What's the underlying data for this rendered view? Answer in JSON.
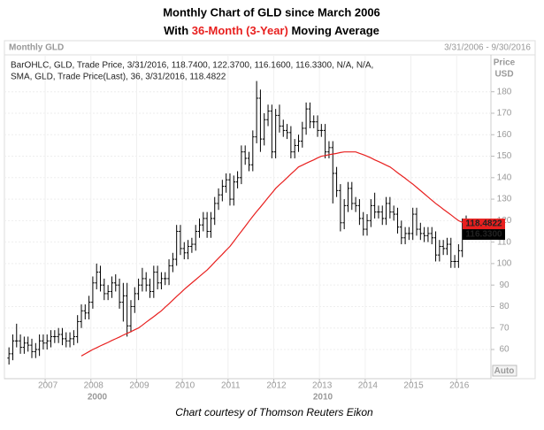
{
  "chart_data": {
    "type": "ohlc",
    "title": "Monthly Chart of GLD since March 2006",
    "subtitle": [
      "With ",
      "36-Month (3-Year)",
      " Moving Average"
    ],
    "subtitle_colors": [
      "#000000",
      "#e8201f",
      "#000000"
    ],
    "panel_label": "Monthly GLD",
    "range_label": "3/31/2006 - 9/30/2016",
    "ylabel": [
      "Price",
      "USD"
    ],
    "button": "Auto",
    "footer": "Chart courtesy of Thomson Reuters Eikon",
    "decade_labels": [
      "2000",
      "2010"
    ],
    "x": [
      "2006-03",
      "2006-04",
      "2006-05",
      "2006-06",
      "2006-07",
      "2006-08",
      "2006-09",
      "2006-10",
      "2006-11",
      "2006-12",
      "2007-01",
      "2007-02",
      "2007-03",
      "2007-04",
      "2007-05",
      "2007-06",
      "2007-07",
      "2007-08",
      "2007-09",
      "2007-10",
      "2007-11",
      "2007-12",
      "2008-01",
      "2008-02",
      "2008-03",
      "2008-04",
      "2008-05",
      "2008-06",
      "2008-07",
      "2008-08",
      "2008-09",
      "2008-10",
      "2008-11",
      "2008-12",
      "2009-01",
      "2009-02",
      "2009-03",
      "2009-04",
      "2009-05",
      "2009-06",
      "2009-07",
      "2009-08",
      "2009-09",
      "2009-10",
      "2009-11",
      "2009-12",
      "2010-01",
      "2010-02",
      "2010-03",
      "2010-04",
      "2010-05",
      "2010-06",
      "2010-07",
      "2010-08",
      "2010-09",
      "2010-10",
      "2010-11",
      "2010-12",
      "2011-01",
      "2011-02",
      "2011-03",
      "2011-04",
      "2011-05",
      "2011-06",
      "2011-07",
      "2011-08",
      "2011-09",
      "2011-10",
      "2011-11",
      "2011-12",
      "2012-01",
      "2012-02",
      "2012-03",
      "2012-04",
      "2012-05",
      "2012-06",
      "2012-07",
      "2012-08",
      "2012-09",
      "2012-10",
      "2012-11",
      "2012-12",
      "2013-01",
      "2013-02",
      "2013-03",
      "2013-04",
      "2013-05",
      "2013-06",
      "2013-07",
      "2013-08",
      "2013-09",
      "2013-10",
      "2013-11",
      "2013-12",
      "2014-01",
      "2014-02",
      "2014-03",
      "2014-04",
      "2014-05",
      "2014-06",
      "2014-07",
      "2014-08",
      "2014-09",
      "2014-10",
      "2014-11",
      "2014-12",
      "2015-01",
      "2015-02",
      "2015-03",
      "2015-04",
      "2015-05",
      "2015-06",
      "2015-07",
      "2015-08",
      "2015-09",
      "2015-10",
      "2015-11",
      "2015-12",
      "2016-01",
      "2016-02",
      "2016-03"
    ],
    "xlim": [
      "2006-03",
      "2016-09"
    ],
    "xticks": [
      2007,
      2008,
      2009,
      2010,
      2011,
      2012,
      2013,
      2014,
      2015,
      2016
    ],
    "ylim": [
      53,
      191
    ],
    "yticks": [
      60,
      70,
      80,
      90,
      100,
      110,
      120,
      130,
      140,
      150,
      160,
      170,
      180
    ],
    "grid": true,
    "series": [
      {
        "name": "BarOHLC, GLD, Trade Price, 3/31/2016, 118.7400, 122.3700, 116.1600, 116.3300, N/A, N/A,",
        "type": "ohlc",
        "color": "#000000",
        "label_bg": "#000000",
        "open": [
          56,
          58,
          64,
          64,
          61,
          63,
          62,
          59,
          60,
          64,
          63,
          64,
          66,
          66,
          67,
          65,
          64,
          65,
          66,
          73,
          78,
          77,
          82,
          91,
          96,
          90,
          86,
          87,
          91,
          90,
          82,
          85,
          71,
          80,
          86,
          90,
          93,
          90,
          87,
          96,
          91,
          93,
          93,
          99,
          102,
          115,
          107,
          105,
          108,
          109,
          115,
          118,
          121,
          115,
          121,
          128,
          132,
          136,
          139,
          130,
          138,
          140,
          152,
          149,
          146,
          159,
          177,
          158,
          167,
          171,
          152,
          169,
          164,
          162,
          161,
          152,
          155,
          157,
          163,
          172,
          166,
          166,
          162,
          162,
          152,
          154,
          142,
          134,
          119,
          127,
          135,
          128,
          127,
          121,
          116,
          120,
          127,
          124,
          124,
          121,
          128,
          124,
          123,
          117,
          112,
          114,
          114,
          123,
          116,
          114,
          113,
          114,
          112,
          104,
          108,
          107,
          109,
          101,
          101,
          106,
          118.74
        ],
        "high": [
          61,
          67,
          72,
          67,
          66,
          66,
          65,
          63,
          67,
          67,
          67,
          69,
          69,
          70,
          70,
          68,
          68,
          69,
          76,
          81,
          81,
          85,
          94,
          100,
          99,
          93,
          90,
          94,
          95,
          93,
          91,
          91,
          83,
          89,
          93,
          98,
          96,
          93,
          99,
          99,
          96,
          96,
          102,
          105,
          118,
          118,
          110,
          111,
          112,
          118,
          121,
          124,
          124,
          124,
          131,
          135,
          139,
          142,
          142,
          141,
          143,
          155,
          155,
          152,
          162,
          185,
          181,
          170,
          174,
          174,
          172,
          174,
          167,
          165,
          164,
          158,
          160,
          166,
          175,
          175,
          169,
          169,
          165,
          165,
          157,
          157,
          145,
          137,
          130,
          138,
          138,
          131,
          130,
          124,
          123,
          130,
          133,
          127,
          127,
          131,
          131,
          127,
          126,
          120,
          117,
          117,
          126,
          126,
          119,
          117,
          117,
          117,
          115,
          111,
          111,
          112,
          112,
          104,
          109,
          121,
          122.37
        ],
        "low": [
          53,
          55,
          61,
          58,
          58,
          59,
          56,
          56,
          57,
          60,
          60,
          61,
          63,
          63,
          62,
          61,
          61,
          62,
          63,
          70,
          74,
          74,
          79,
          88,
          87,
          83,
          83,
          84,
          87,
          79,
          73,
          66,
          68,
          77,
          83,
          87,
          87,
          84,
          84,
          88,
          88,
          90,
          90,
          96,
          99,
          104,
          102,
          102,
          105,
          106,
          112,
          115,
          112,
          112,
          118,
          125,
          129,
          133,
          127,
          127,
          135,
          137,
          146,
          143,
          143,
          156,
          152,
          155,
          164,
          149,
          149,
          161,
          159,
          158,
          149,
          149,
          152,
          154,
          160,
          163,
          163,
          159,
          159,
          149,
          149,
          128,
          131,
          115,
          116,
          124,
          125,
          124,
          118,
          113,
          113,
          117,
          121,
          121,
          118,
          118,
          121,
          120,
          114,
          109,
          109,
          111,
          111,
          113,
          111,
          110,
          110,
          109,
          101,
          101,
          104,
          104,
          98,
          98,
          98,
          103,
          116.16
        ],
        "close": [
          58,
          64,
          64,
          61,
          63,
          62,
          59,
          60,
          64,
          63,
          64,
          66,
          66,
          67,
          65,
          64,
          65,
          66,
          73,
          78,
          77,
          82,
          91,
          96,
          90,
          86,
          87,
          91,
          90,
          82,
          85,
          71,
          80,
          86,
          90,
          93,
          90,
          87,
          96,
          91,
          93,
          93,
          99,
          102,
          115,
          107,
          105,
          108,
          109,
          115,
          118,
          121,
          115,
          121,
          128,
          132,
          136,
          139,
          130,
          138,
          140,
          152,
          149,
          146,
          159,
          177,
          158,
          167,
          171,
          152,
          169,
          164,
          162,
          161,
          152,
          155,
          157,
          163,
          172,
          166,
          166,
          162,
          162,
          152,
          154,
          142,
          134,
          119,
          127,
          135,
          128,
          127,
          121,
          116,
          120,
          127,
          124,
          124,
          121,
          128,
          124,
          123,
          117,
          112,
          114,
          114,
          123,
          116,
          114,
          113,
          114,
          112,
          104,
          108,
          107,
          109,
          101,
          101,
          106,
          118.6,
          116.33
        ],
        "value_labels": {
          "120": "116.3300"
        }
      },
      {
        "name": "SMA, GLD, Trade Price(Last),  36, 3/31/2016, 118.4822",
        "type": "line",
        "color": "#e8201f",
        "label_bg": "#e8201f",
        "values": [
          null,
          null,
          null,
          null,
          null,
          null,
          null,
          null,
          null,
          null,
          null,
          null,
          null,
          null,
          null,
          null,
          null,
          null,
          null,
          57,
          58,
          59,
          60,
          60.8,
          61.7,
          62.5,
          63.3,
          64.2,
          65,
          65.8,
          66.7,
          67.5,
          68.3,
          69.2,
          70,
          71.3,
          72.7,
          74,
          75.3,
          76.7,
          78,
          79.7,
          81.3,
          83,
          84.7,
          86.3,
          88,
          89.5,
          91,
          92.5,
          94,
          95.5,
          97,
          98.8,
          100.7,
          102.5,
          104.3,
          106.2,
          108,
          110.3,
          112.7,
          115,
          117.3,
          119.7,
          122,
          124.2,
          126.3,
          128.5,
          130.7,
          132.8,
          135,
          136.7,
          138.3,
          140,
          141.7,
          143.3,
          145,
          145.8,
          146.7,
          147.5,
          148.3,
          149.2,
          150,
          150.3,
          150.7,
          151,
          151.3,
          151.7,
          152,
          152,
          152,
          152,
          151.3,
          150.7,
          150,
          149.2,
          148.3,
          147.5,
          146.7,
          145.8,
          145,
          143.7,
          142.3,
          141,
          139.7,
          138.3,
          137,
          135.5,
          134,
          132.5,
          131,
          129.5,
          128,
          126.7,
          125.3,
          124,
          122.7,
          121.3,
          120,
          119.2,
          118.4822
        ],
        "value_labels": {
          "120": "118.4822"
        }
      }
    ]
  }
}
